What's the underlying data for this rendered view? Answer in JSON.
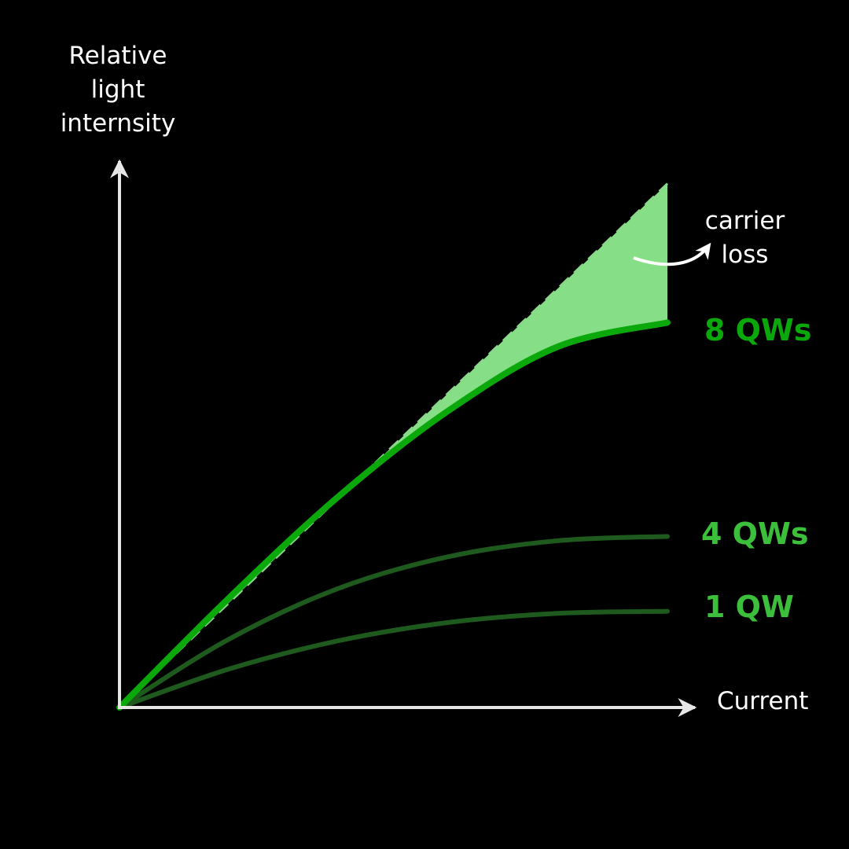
{
  "chart_data": {
    "type": "line",
    "ylabel_lines": [
      "Relative",
      "light",
      "internsity"
    ],
    "xlabel": "Current",
    "xlim": [
      0,
      1
    ],
    "ylim": [
      0,
      1
    ],
    "series": [
      {
        "name": "8 QWs",
        "color": "#0aa80a",
        "x": [
          0,
          0.2,
          0.4,
          0.6,
          0.8,
          1.0
        ],
        "y": [
          0,
          0.205,
          0.395,
          0.555,
          0.675,
          0.72
        ]
      },
      {
        "name": "4 QWs",
        "color": "#1e5a1e",
        "x": [
          0,
          0.2,
          0.4,
          0.6,
          0.8,
          1.0
        ],
        "y": [
          0,
          0.128,
          0.223,
          0.282,
          0.312,
          0.32
        ]
      },
      {
        "name": "1 QW",
        "color": "#1e5a1e",
        "x": [
          0,
          0.2,
          0.4,
          0.6,
          0.8,
          1.0
        ],
        "y": [
          0,
          0.072,
          0.125,
          0.159,
          0.176,
          0.18
        ]
      }
    ],
    "ideal_line": {
      "x": [
        0,
        1.0
      ],
      "y": [
        0,
        0.98
      ]
    },
    "annotations": [
      {
        "text_lines": [
          "carrier",
          "loss"
        ],
        "target": "shaded area between ideal line and 8 QWs curve"
      }
    ],
    "label_colors": {
      "8 QWs": "#0aa80a",
      "4 QWs": "#3cc03c",
      "1 QW": "#3cc03c"
    },
    "fill_color": "#86de86",
    "axis_color": "#e6e6e6"
  }
}
